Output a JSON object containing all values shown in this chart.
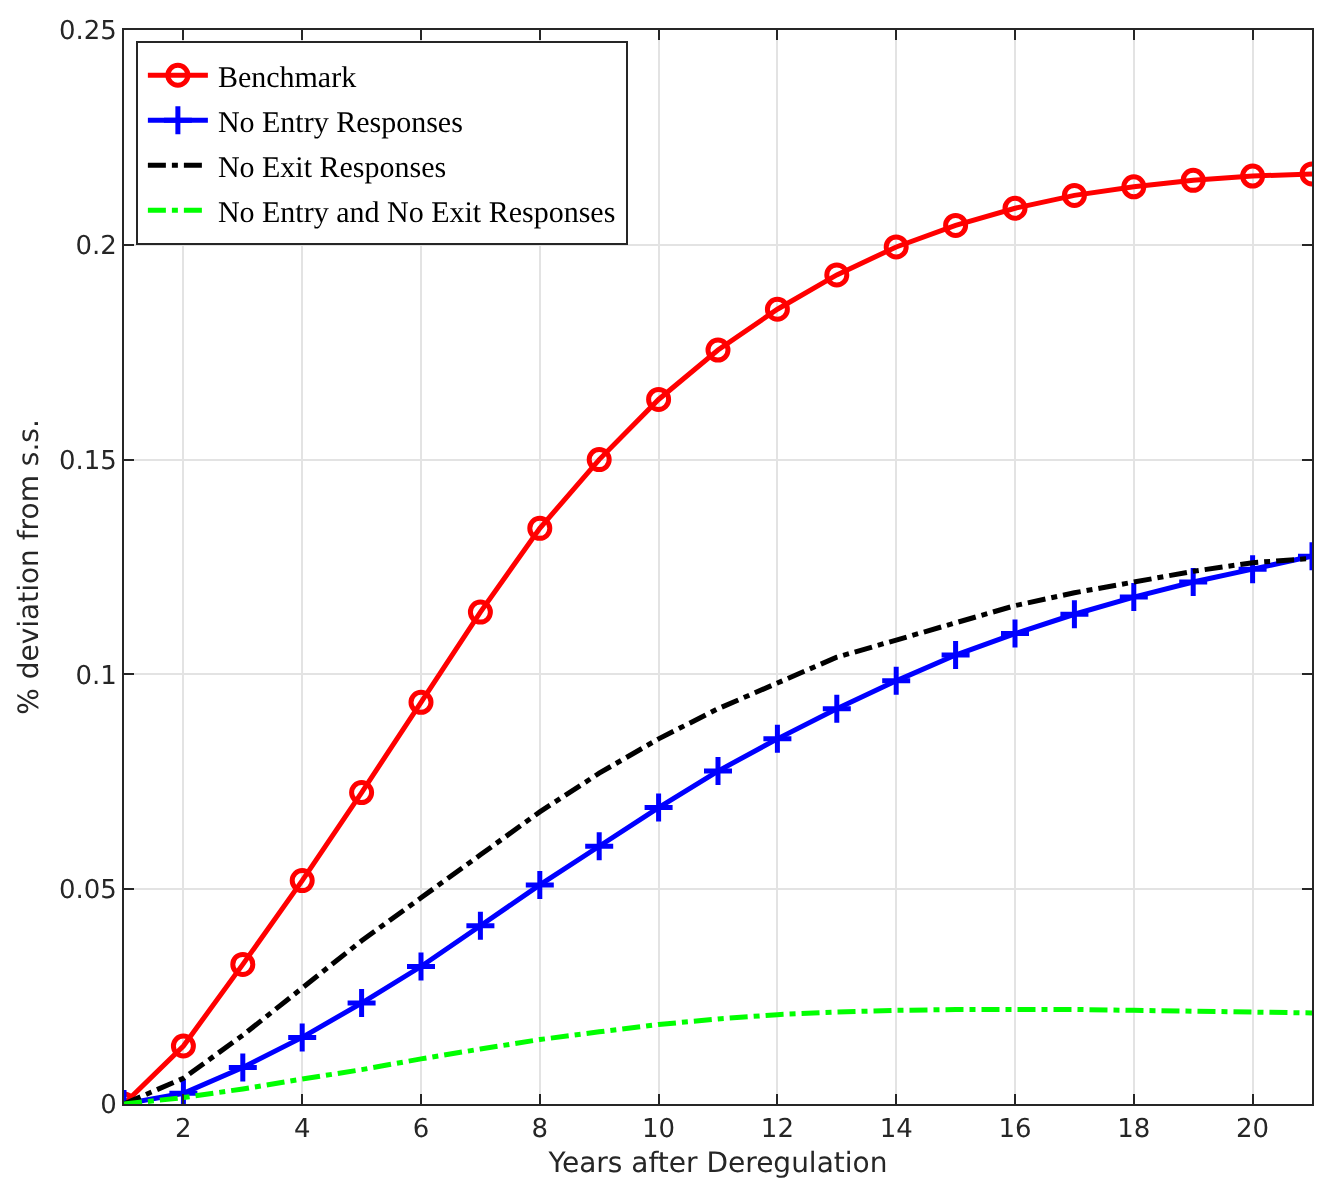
{
  "chart_data": {
    "type": "line",
    "xlabel": "Years after Deregulation",
    "ylabel": "% deviation from s.s.",
    "x": [
      1,
      2,
      3,
      4,
      5,
      6,
      7,
      8,
      9,
      10,
      11,
      12,
      13,
      14,
      15,
      16,
      17,
      18,
      19,
      20,
      21
    ],
    "xlim": [
      1,
      21
    ],
    "xticks": [
      2,
      4,
      6,
      8,
      10,
      12,
      14,
      16,
      18,
      20
    ],
    "ylim": [
      0,
      0.25
    ],
    "yticks": [
      0,
      0.05,
      0.1,
      0.15,
      0.2,
      0.25
    ],
    "grid": true,
    "legend": "top left",
    "series": [
      {
        "name": "Benchmark",
        "color": "#ff0000",
        "marker": "circle",
        "line_style": "solid",
        "values": [
          0,
          0.0135,
          0.0325,
          0.052,
          0.0725,
          0.0935,
          0.1145,
          0.134,
          0.15,
          0.164,
          0.1755,
          0.185,
          0.193,
          0.1995,
          0.2045,
          0.2085,
          0.2115,
          0.2135,
          0.215,
          0.216,
          0.2165
        ]
      },
      {
        "name": "No Entry Responses",
        "color": "#0000ff",
        "marker": "cross",
        "line_style": "solid",
        "values": [
          0,
          0.0025,
          0.0085,
          0.0155,
          0.0235,
          0.032,
          0.0415,
          0.051,
          0.06,
          0.069,
          0.0775,
          0.085,
          0.092,
          0.0985,
          0.1045,
          0.1095,
          0.114,
          0.118,
          0.1215,
          0.1245,
          0.1275
        ]
      },
      {
        "name": "No Exit Responses",
        "color": "#000000",
        "marker": "none",
        "line_style": "dashdot",
        "values": [
          0,
          0.006,
          0.016,
          0.027,
          0.038,
          0.048,
          0.058,
          0.068,
          0.077,
          0.085,
          0.092,
          0.098,
          0.104,
          0.108,
          0.112,
          0.116,
          0.119,
          0.1215,
          0.124,
          0.126,
          0.127
        ]
      },
      {
        "name": "No Entry and No Exit Responses",
        "color": "#00ff00",
        "marker": "none",
        "line_style": "dashdot",
        "values": [
          0,
          0.0015,
          0.0035,
          0.0058,
          0.008,
          0.0105,
          0.0128,
          0.015,
          0.0168,
          0.0185,
          0.0198,
          0.0208,
          0.0214,
          0.0218,
          0.022,
          0.022,
          0.022,
          0.0218,
          0.0216,
          0.0214,
          0.0212
        ]
      }
    ]
  }
}
